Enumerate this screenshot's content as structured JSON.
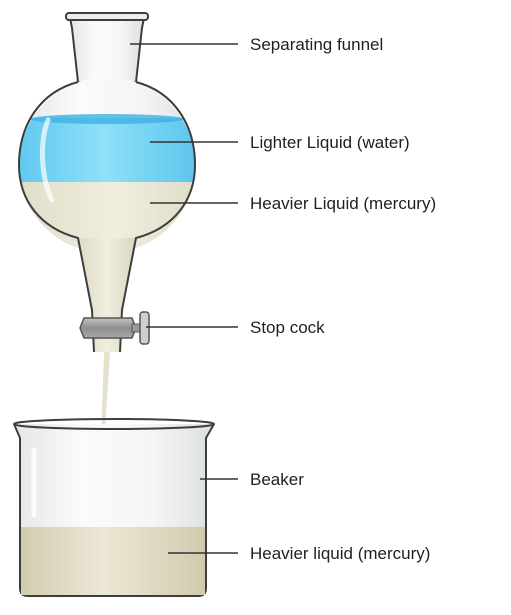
{
  "labels": {
    "separating_funnel": "Separating funnel",
    "lighter_liquid": "Lighter Liquid (water)",
    "heavier_liquid_funnel": "Heavier Liquid (mercury)",
    "stop_cock": "Stop cock",
    "beaker": "Beaker",
    "heavier_liquid_beaker": "Heavier liquid (mercury)"
  },
  "colors": {
    "water": "#6fd0f2",
    "mercury": "#e9e6d6",
    "glass": "#f3f4f5",
    "glass_outline": "#3d3d3d",
    "stopcock": "#9a9a9a",
    "leader_line": "#333333"
  }
}
